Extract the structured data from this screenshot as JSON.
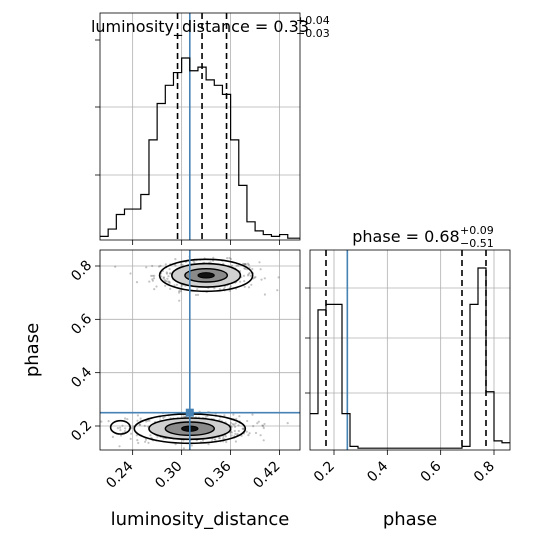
{
  "chart_data": {
    "type": "corner",
    "parameters": [
      "luminosity_distance",
      "phase"
    ],
    "colors": {
      "truth": "#4682b4",
      "hist": "#000000",
      "grid": "#b0b0b0",
      "points": "#555555"
    },
    "grid": true,
    "titles": {
      "luminosity_distance": {
        "label": "luminosity_distance = 0.33",
        "plus": "+0.04",
        "minus": "−0.03"
      },
      "phase": {
        "label": "phase = 0.68",
        "plus": "+0.09",
        "minus": "−0.51"
      }
    },
    "axes": {
      "luminosity_distance": {
        "xlabel": "luminosity_distance",
        "range": [
          0.2,
          0.445
        ],
        "ticks": [
          0.24,
          0.3,
          0.36,
          0.42
        ],
        "tick_labels": [
          "0.24",
          "0.30",
          "0.36",
          "0.42"
        ]
      },
      "phase": {
        "xlabel": "phase",
        "ylabel": "phase",
        "range": [
          0.11,
          0.86
        ],
        "ticks": [
          0.2,
          0.4,
          0.6,
          0.8
        ],
        "tick_labels": [
          "0.2",
          "0.4",
          "0.6",
          "0.8"
        ]
      }
    },
    "truths": {
      "luminosity_distance": 0.31,
      "phase": 0.25
    },
    "quantiles": {
      "luminosity_distance": [
        0.295,
        0.325,
        0.355
      ],
      "phase": [
        0.17,
        0.68,
        0.77
      ]
    },
    "histograms": {
      "luminosity_distance": {
        "edges": [
          0.2,
          0.21,
          0.22,
          0.23,
          0.24,
          0.25,
          0.26,
          0.27,
          0.28,
          0.29,
          0.3,
          0.31,
          0.32,
          0.33,
          0.34,
          0.35,
          0.36,
          0.37,
          0.38,
          0.39,
          0.4,
          0.41,
          0.42,
          0.43,
          0.445
        ],
        "counts": [
          0.02,
          0.06,
          0.14,
          0.17,
          0.17,
          0.25,
          0.55,
          0.75,
          0.85,
          0.92,
          1.0,
          0.93,
          0.95,
          0.88,
          0.85,
          0.8,
          0.55,
          0.3,
          0.1,
          0.05,
          0.03,
          0.02,
          0.03,
          0.01
        ]
      },
      "phase": {
        "edges": [
          0.11,
          0.14,
          0.17,
          0.2,
          0.23,
          0.26,
          0.29,
          0.32,
          0.35,
          0.38,
          0.41,
          0.44,
          0.47,
          0.5,
          0.53,
          0.56,
          0.59,
          0.62,
          0.65,
          0.68,
          0.71,
          0.74,
          0.77,
          0.8,
          0.83,
          0.86
        ],
        "counts": [
          0.2,
          0.77,
          0.8,
          0.8,
          0.2,
          0.02,
          0.01,
          0.01,
          0.01,
          0.01,
          0.01,
          0.01,
          0.01,
          0.01,
          0.01,
          0.01,
          0.01,
          0.01,
          0.01,
          0.02,
          0.8,
          1.0,
          0.32,
          0.05,
          0.04
        ]
      }
    },
    "scatter_clusters": [
      {
        "cx": 0.33,
        "cy": 0.765,
        "sx": 0.032,
        "sy": 0.028,
        "n": 420
      },
      {
        "cx": 0.31,
        "cy": 0.19,
        "sx": 0.038,
        "sy": 0.026,
        "n": 480
      }
    ],
    "contour_levels": [
      {
        "cluster": 0,
        "rx": 0.057,
        "ry": 0.06,
        "fill": "none",
        "width": 1.6
      },
      {
        "cluster": 0,
        "rx": 0.042,
        "ry": 0.044,
        "fill": "#d0d0d0",
        "width": 1.6
      },
      {
        "cluster": 0,
        "rx": 0.026,
        "ry": 0.025,
        "fill": "#8a8a8a",
        "width": 1.4
      },
      {
        "cluster": 0,
        "rx": 0.01,
        "ry": 0.01,
        "fill": "#111111",
        "width": 1.0
      },
      {
        "cluster": 1,
        "rx": 0.068,
        "ry": 0.055,
        "fill": "none",
        "width": 1.6
      },
      {
        "cluster": 1,
        "rx": 0.05,
        "ry": 0.04,
        "fill": "#d0d0d0",
        "width": 1.6
      },
      {
        "cluster": 1,
        "rx": 0.03,
        "ry": 0.025,
        "fill": "#8a8a8a",
        "width": 1.4
      },
      {
        "cluster": 1,
        "rx": 0.01,
        "ry": 0.01,
        "fill": "#111111",
        "width": 1.0
      }
    ],
    "side_blob": {
      "cx": 0.225,
      "cy": 0.195,
      "rx": 0.012,
      "ry": 0.025
    }
  }
}
